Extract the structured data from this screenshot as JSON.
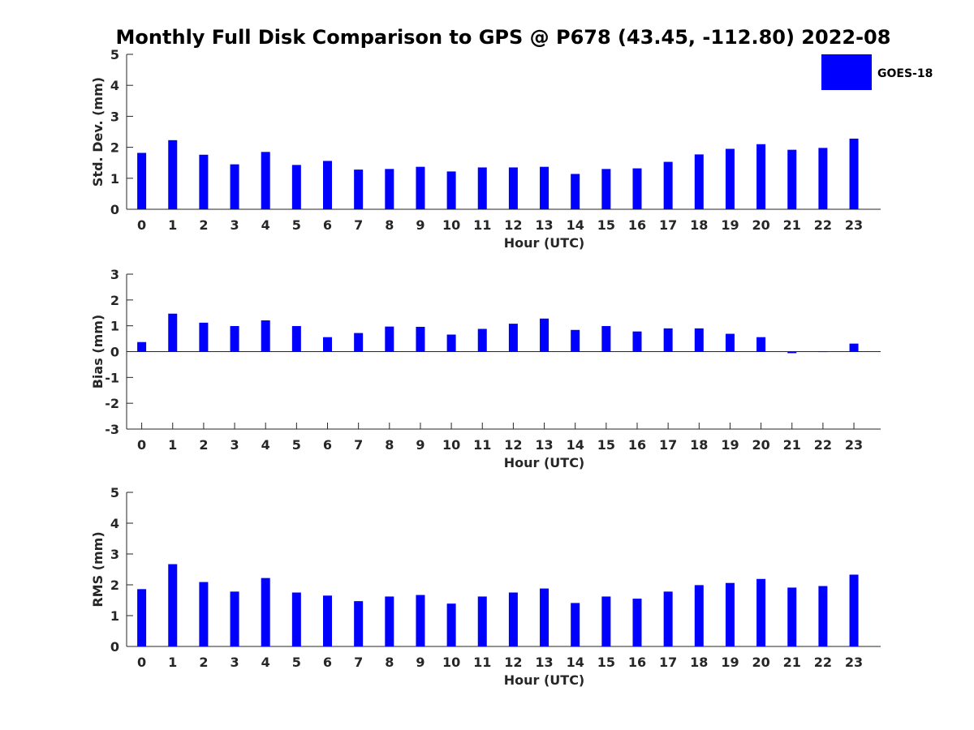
{
  "page_title": "Monthly Full Disk Comparison to GPS @ P678 (43.45, -112.80) 2022-08",
  "legend": {
    "label": "GOES-18",
    "color": "#0000ff"
  },
  "chart_data": [
    {
      "type": "bar",
      "title": "",
      "xlabel": "Hour (UTC)",
      "ylabel": "Std. Dev. (mm)",
      "ylim": [
        0,
        5
      ],
      "yticks": [
        0,
        1,
        2,
        3,
        4,
        5
      ],
      "categories": [
        "0",
        "1",
        "2",
        "3",
        "4",
        "5",
        "6",
        "7",
        "8",
        "9",
        "10",
        "11",
        "12",
        "13",
        "14",
        "15",
        "16",
        "17",
        "18",
        "19",
        "20",
        "21",
        "22",
        "23"
      ],
      "series": [
        {
          "name": "GOES-18",
          "color": "#0000ff",
          "values": [
            1.82,
            2.23,
            1.76,
            1.45,
            1.85,
            1.43,
            1.56,
            1.28,
            1.3,
            1.37,
            1.22,
            1.35,
            1.35,
            1.37,
            1.14,
            1.3,
            1.32,
            1.53,
            1.77,
            1.95,
            2.1,
            1.92,
            1.98,
            2.28
          ]
        }
      ]
    },
    {
      "type": "bar",
      "title": "",
      "xlabel": "Hour (UTC)",
      "ylabel": "Bias (mm)",
      "ylim": [
        -3,
        3
      ],
      "yticks": [
        -3,
        -2,
        -1,
        0,
        1,
        2,
        3
      ],
      "categories": [
        "0",
        "1",
        "2",
        "3",
        "4",
        "5",
        "6",
        "7",
        "8",
        "9",
        "10",
        "11",
        "12",
        "13",
        "14",
        "15",
        "16",
        "17",
        "18",
        "19",
        "20",
        "21",
        "22",
        "23"
      ],
      "series": [
        {
          "name": "GOES-18",
          "color": "#0000ff",
          "values": [
            0.37,
            1.47,
            1.12,
            0.99,
            1.21,
            0.99,
            0.56,
            0.72,
            0.97,
            0.96,
            0.66,
            0.88,
            1.08,
            1.28,
            0.84,
            0.99,
            0.78,
            0.9,
            0.9,
            0.69,
            0.56,
            -0.06,
            -0.01,
            0.31
          ]
        }
      ]
    },
    {
      "type": "bar",
      "title": "",
      "xlabel": "Hour (UTC)",
      "ylabel": "RMS (mm)",
      "ylim": [
        0,
        5
      ],
      "yticks": [
        0,
        1,
        2,
        3,
        4,
        5
      ],
      "categories": [
        "0",
        "1",
        "2",
        "3",
        "4",
        "5",
        "6",
        "7",
        "8",
        "9",
        "10",
        "11",
        "12",
        "13",
        "14",
        "15",
        "16",
        "17",
        "18",
        "19",
        "20",
        "21",
        "22",
        "23"
      ],
      "series": [
        {
          "name": "GOES-18",
          "color": "#0000ff",
          "values": [
            1.86,
            2.67,
            2.09,
            1.78,
            2.22,
            1.75,
            1.65,
            1.47,
            1.62,
            1.67,
            1.39,
            1.62,
            1.75,
            1.88,
            1.41,
            1.62,
            1.55,
            1.78,
            1.99,
            2.06,
            2.19,
            1.91,
            1.96,
            2.33
          ]
        }
      ]
    }
  ]
}
